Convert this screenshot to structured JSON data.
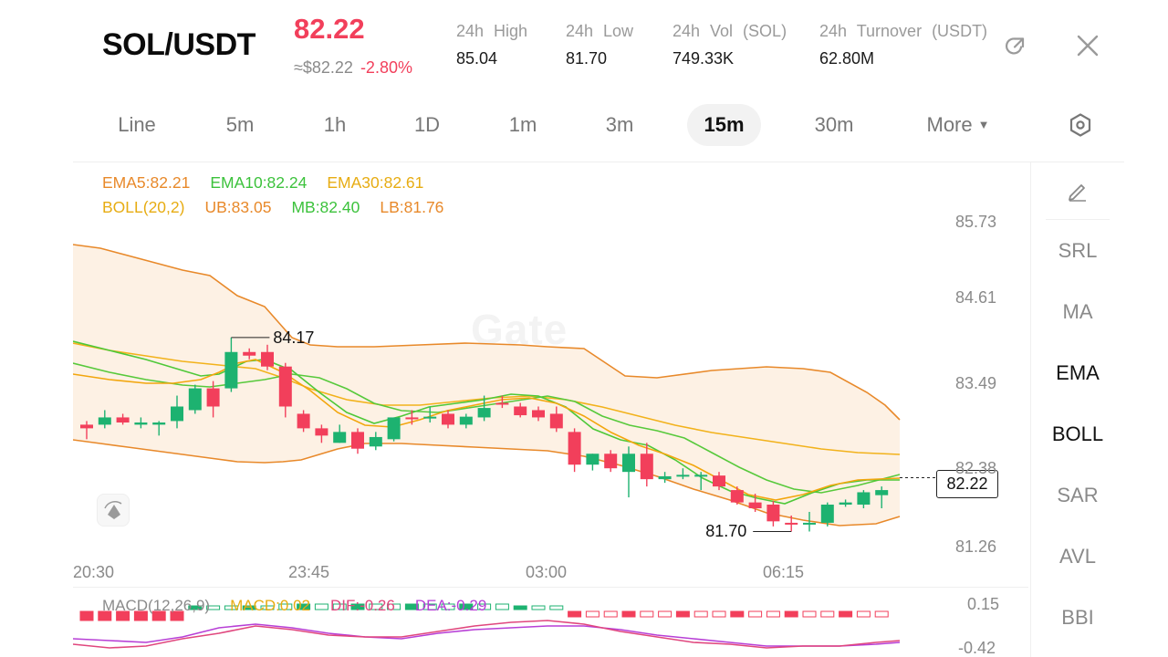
{
  "header": {
    "pair": "SOL/USDT",
    "price": "82.22",
    "approx": "≈$82.22",
    "change": "-2.80%",
    "stats": [
      {
        "label": "24h High",
        "value": "85.04"
      },
      {
        "label": "24h Low",
        "value": "81.70"
      },
      {
        "label": "24h Vol (SOL)",
        "value": "749.33K"
      },
      {
        "label": "24h Turnover (USDT)",
        "value": "62.80M"
      }
    ],
    "icons": [
      "share-icon",
      "close-icon"
    ]
  },
  "tabs": [
    {
      "label": "Line",
      "active": false
    },
    {
      "label": "5m",
      "active": false
    },
    {
      "label": "1h",
      "active": false
    },
    {
      "label": "1D",
      "active": false
    },
    {
      "label": "1m",
      "active": false
    },
    {
      "label": "3m",
      "active": false
    },
    {
      "label": "15m",
      "active": true
    },
    {
      "label": "30m",
      "active": false
    },
    {
      "label": "More",
      "active": false
    }
  ],
  "settings_icon": "hexagon-gear-icon",
  "indicators": {
    "ema": {
      "ema5": "EMA5:82.21",
      "ema10": "EMA10:82.24",
      "ema30": "EMA30:82.61"
    },
    "boll": {
      "name": "BOLL(20,2)",
      "ub": "UB:83.05",
      "mb": "MB:82.40",
      "lb": "LB:81.76"
    },
    "macd": {
      "name": "MACD(12,26,9)",
      "macd": "MACD:0.02",
      "dif": "DIF:-0.26",
      "dea": "DEA:-0.29"
    }
  },
  "side_menu": {
    "edit_icon": "pencil-icon",
    "items": [
      {
        "label": "SRL",
        "active": false
      },
      {
        "label": "MA",
        "active": false
      },
      {
        "label": "EMA",
        "active": true
      },
      {
        "label": "BOLL",
        "active": true
      },
      {
        "label": "SAR",
        "active": false
      },
      {
        "label": "AVL",
        "active": false
      },
      {
        "label": "BBI",
        "active": false
      }
    ]
  },
  "watermark": "Gate",
  "chart_data": {
    "type": "candlestick",
    "y_ticks": [
      "85.73",
      "84.61",
      "83.49",
      "82.38",
      "81.26"
    ],
    "x_ticks": [
      "20:30",
      "23:45",
      "03:00",
      "06:15"
    ],
    "ylim": [
      81.26,
      85.73
    ],
    "last_price": "82.22",
    "high_marker": "84.17",
    "low_marker": "81.70",
    "macd_ticks": [
      "0.15",
      "-0.42"
    ],
    "candles": [
      [
        82.95,
        83.0,
        82.75,
        82.9
      ],
      [
        82.95,
        83.15,
        82.9,
        83.05
      ],
      [
        83.05,
        83.1,
        82.95,
        82.98
      ],
      [
        82.95,
        83.05,
        82.9,
        82.98
      ],
      [
        82.95,
        83.0,
        82.8,
        82.98
      ],
      [
        83.0,
        83.35,
        82.9,
        83.2
      ],
      [
        83.15,
        83.5,
        83.1,
        83.45
      ],
      [
        83.45,
        83.55,
        83.05,
        83.2
      ],
      [
        83.45,
        84.15,
        83.4,
        83.95
      ],
      [
        83.95,
        84.0,
        83.85,
        83.9
      ],
      [
        83.95,
        84.05,
        83.7,
        83.75
      ],
      [
        83.75,
        83.8,
        83.05,
        83.2
      ],
      [
        83.1,
        83.15,
        82.85,
        82.9
      ],
      [
        82.9,
        82.95,
        82.7,
        82.8
      ],
      [
        82.7,
        82.95,
        82.7,
        82.85
      ],
      [
        82.85,
        82.9,
        82.55,
        82.62
      ],
      [
        82.65,
        82.85,
        82.6,
        82.78
      ],
      [
        82.75,
        83.05,
        82.72,
        83.05
      ],
      [
        83.05,
        83.15,
        82.95,
        83.04
      ],
      [
        83.04,
        83.2,
        82.98,
        83.06
      ],
      [
        83.1,
        83.15,
        82.9,
        82.95
      ],
      [
        82.95,
        83.1,
        82.9,
        83.06
      ],
      [
        83.05,
        83.35,
        83.0,
        83.18
      ],
      [
        83.25,
        83.35,
        83.18,
        83.24
      ],
      [
        83.2,
        83.25,
        83.05,
        83.08
      ],
      [
        83.15,
        83.2,
        83.0,
        83.05
      ],
      [
        83.1,
        83.2,
        82.85,
        82.9
      ],
      [
        82.85,
        82.9,
        82.3,
        82.4
      ],
      [
        82.4,
        82.55,
        82.32,
        82.55
      ],
      [
        82.55,
        82.6,
        82.3,
        82.35
      ],
      [
        82.3,
        82.65,
        81.95,
        82.55
      ],
      [
        82.55,
        82.7,
        82.1,
        82.2
      ],
      [
        82.2,
        82.3,
        82.15,
        82.24
      ],
      [
        82.24,
        82.35,
        82.2,
        82.26
      ],
      [
        82.24,
        82.3,
        82.05,
        82.26
      ],
      [
        82.25,
        82.3,
        82.05,
        82.1
      ],
      [
        82.05,
        82.1,
        81.85,
        81.88
      ],
      [
        81.88,
        82.0,
        81.75,
        81.8
      ],
      [
        81.85,
        81.9,
        81.55,
        81.62
      ],
      [
        81.6,
        81.7,
        81.48,
        81.58
      ],
      [
        81.58,
        81.75,
        81.48,
        81.6
      ],
      [
        81.6,
        81.88,
        81.55,
        81.85
      ],
      [
        81.85,
        81.92,
        81.82,
        81.88
      ],
      [
        81.85,
        82.05,
        81.8,
        82.02
      ],
      [
        81.98,
        82.1,
        81.8,
        82.05
      ]
    ]
  }
}
